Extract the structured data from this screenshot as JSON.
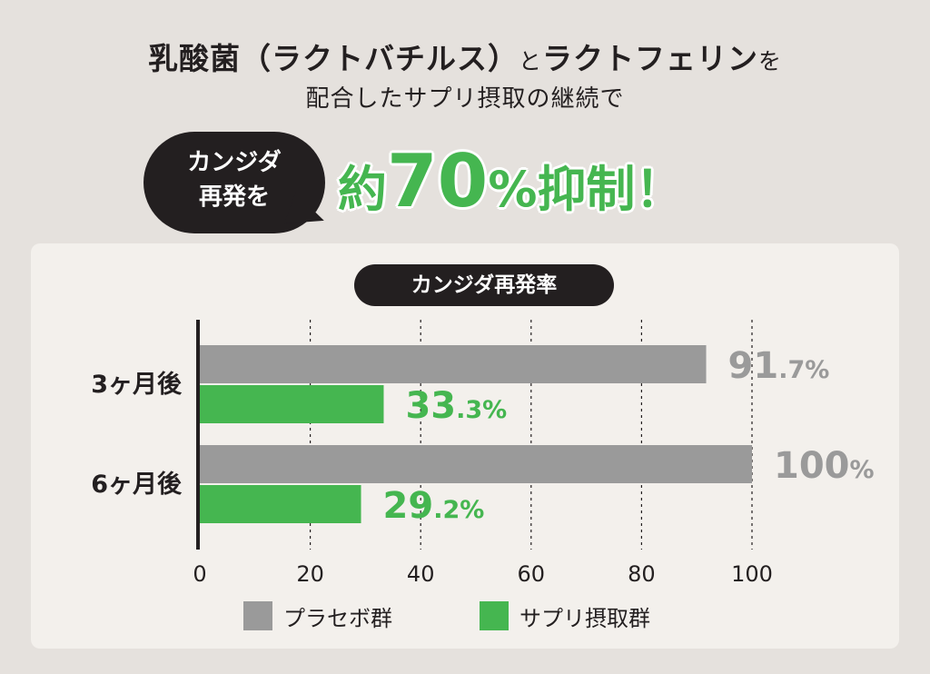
{
  "headline": {
    "part1": "乳酸菌（ラクトバチルス）",
    "conn1": "と",
    "part2": "ラクトフェリン",
    "conn2": "を",
    "line2": "配合したサプリ摂取の継続で"
  },
  "bubble": {
    "line1": "カンジダ",
    "line2": "再発を"
  },
  "result": {
    "prefix": "約",
    "number": "70",
    "percent": "%",
    "suffix": "抑制！"
  },
  "chart_title": "カンジダ再発率",
  "colors": {
    "placebo": "#9a9a9a",
    "supplement": "#45b650",
    "dark": "#231f20",
    "accent": "#45b650"
  },
  "chart_data": {
    "type": "bar",
    "orientation": "horizontal",
    "title": "カンジダ再発率",
    "categories": [
      "3ヶ月後",
      "6ヶ月後"
    ],
    "series": [
      {
        "name": "プラセボ群",
        "values": [
          91.7,
          100
        ],
        "labels": [
          [
            "91",
            ".7%"
          ],
          [
            "100",
            "%"
          ]
        ],
        "color": "#9a9a9a"
      },
      {
        "name": "サプリ摂取群",
        "values": [
          33.3,
          29.2
        ],
        "labels": [
          [
            "33",
            ".3%"
          ],
          [
            "29",
            ".2%"
          ]
        ],
        "color": "#45b650"
      }
    ],
    "xlim": [
      0,
      100
    ],
    "xticks": [
      "0",
      "20",
      "40",
      "60",
      "80",
      "100"
    ],
    "grid": "dotted-vertical",
    "legend": "bottom"
  }
}
